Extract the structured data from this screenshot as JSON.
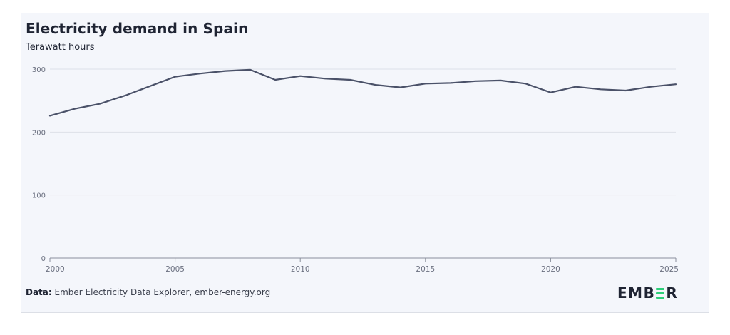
{
  "header": {
    "title": "Electricity demand in Spain",
    "subtitle": "Terawatt hours"
  },
  "footer": {
    "source_label": "Data:",
    "source_text": " Ember Electricity Data Explorer, ember-energy.org",
    "logo_text_left": "EMB",
    "logo_text_right": "R"
  },
  "colors": {
    "line": "#4a5168",
    "grid": "#dde0e8",
    "axis": "#8a8f9c",
    "tick_text": "#6b7080",
    "logo_accent": "#2ecf7a"
  },
  "chart_data": {
    "type": "line",
    "title": "Electricity demand in Spain",
    "ylabel": "Terawatt hours",
    "xlabel": "",
    "xlim": [
      2000,
      2025
    ],
    "ylim": [
      0,
      300
    ],
    "y_ticks": [
      0,
      100,
      200,
      300
    ],
    "x_ticks": [
      2000,
      2005,
      2010,
      2015,
      2020,
      2025
    ],
    "grid": "horizontal",
    "x": [
      2000,
      2001,
      2002,
      2003,
      2004,
      2005,
      2006,
      2007,
      2008,
      2009,
      2010,
      2011,
      2012,
      2013,
      2014,
      2015,
      2016,
      2017,
      2018,
      2019,
      2020,
      2021,
      2022,
      2023,
      2024,
      2025
    ],
    "series": [
      {
        "values": [
          226,
          237,
          245,
          258,
          273,
          288,
          293,
          297,
          299,
          283,
          289,
          285,
          283,
          275,
          271,
          277,
          278,
          281,
          282,
          277,
          263,
          272,
          268,
          266,
          272,
          276
        ]
      }
    ]
  }
}
